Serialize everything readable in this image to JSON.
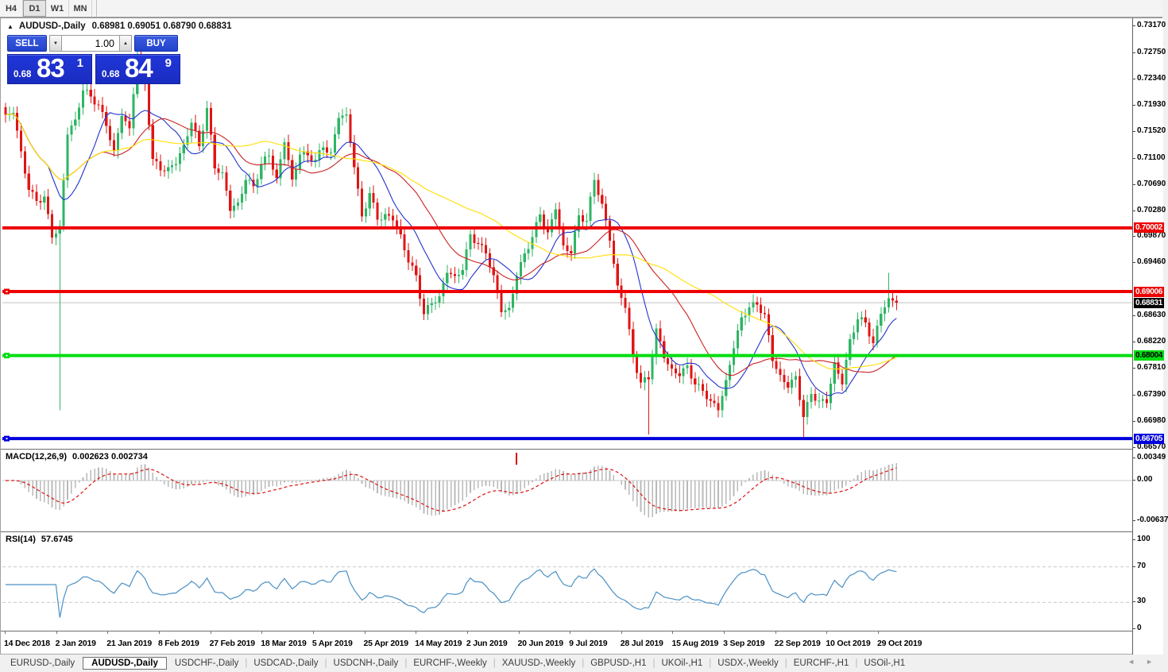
{
  "toolbar": {
    "timeframes": [
      {
        "label": "H4",
        "active": false
      },
      {
        "label": "D1",
        "active": true
      },
      {
        "label": "W1",
        "active": false
      },
      {
        "label": "MN",
        "active": false
      }
    ]
  },
  "chart": {
    "collapse_icon": "▲",
    "symbol_period": "AUDUSD-,Daily",
    "ohlc": "0.68981 0.69051 0.68790 0.68831"
  },
  "trade_panel": {
    "sell_label": "SELL",
    "buy_label": "BUY",
    "volume": "1.00",
    "spinner_down": "▼",
    "spinner_up": "▲",
    "sell_price_main": "0.68",
    "sell_price_big": "83",
    "sell_price_sup": "1",
    "buy_price_main": "0.68",
    "buy_price_big": "84",
    "buy_price_sup": "9"
  },
  "price_axis": {
    "ticks": [
      "0.73170",
      "0.72750",
      "0.72340",
      "0.71930",
      "0.71520",
      "0.71100",
      "0.70690",
      "0.70280",
      "0.69870",
      "0.69460",
      "0.68630",
      "0.68220",
      "0.67810",
      "0.67390",
      "0.66980",
      "0.66570"
    ],
    "badges": [
      {
        "text": "0.70002",
        "bg": "#ee0000",
        "fg": "#ffffff",
        "price": 0.70002
      },
      {
        "text": "0.69006",
        "bg": "#ee0000",
        "fg": "#ffffff",
        "price": 0.69006
      },
      {
        "text": "0.68831",
        "bg": "#000000",
        "fg": "#ffffff",
        "price": 0.68831
      },
      {
        "text": "0.68004",
        "bg": "#00dd11",
        "fg": "#000000",
        "price": 0.68004
      },
      {
        "text": "0.66705",
        "bg": "#0000dd",
        "fg": "#ffffff",
        "price": 0.66705
      }
    ]
  },
  "macd_panel": {
    "label": "MACD(12,26,9)",
    "values": "0.002623 0.002734",
    "ticks": [
      {
        "text": "0.00349",
        "value": 0.00349
      },
      {
        "text": "0.00",
        "value": 0
      },
      {
        "text": "-0.00637",
        "value": -0.00637
      }
    ]
  },
  "rsi_panel": {
    "label": "RSI(14)",
    "value": "57.6745",
    "ticks": [
      {
        "text": "100",
        "value": 100
      },
      {
        "text": "70",
        "value": 70
      },
      {
        "text": "30",
        "value": 30
      },
      {
        "text": "0",
        "value": 0
      }
    ],
    "levels": [
      70,
      30
    ]
  },
  "dates": [
    "14 Dec 2018",
    "2 Jan 2019",
    "21 Jan 2019",
    "8 Feb 2019",
    "27 Feb 2019",
    "18 Mar 2019",
    "5 Apr 2019",
    "25 Apr 2019",
    "14 May 2019",
    "2 Jun 2019",
    "20 Jun 2019",
    "9 Jul 2019",
    "28 Jul 2019",
    "15 Aug 2019",
    "3 Sep 2019",
    "22 Sep 2019",
    "10 Oct 2019",
    "29 Oct 2019"
  ],
  "tabs": [
    {
      "label": "EURUSD-,Daily",
      "active": false
    },
    {
      "label": "AUDUSD-,Daily",
      "active": true
    },
    {
      "label": "USDCHF-,Daily",
      "active": false
    },
    {
      "label": "USDCAD-,Daily",
      "active": false
    },
    {
      "label": "USDCNH-,Daily",
      "active": false
    },
    {
      "label": "EURCHF-,Weekly",
      "active": false
    },
    {
      "label": "XAUUSD-,Weekly",
      "active": false
    },
    {
      "label": "GBPUSD-,H1",
      "active": false
    },
    {
      "label": "UKOil-,H1",
      "active": false
    },
    {
      "label": "USDX-,Weekly",
      "active": false
    },
    {
      "label": "EURCHF-,H1",
      "active": false
    },
    {
      "label": "USOil-,H1",
      "active": false
    }
  ],
  "tab_nav": {
    "left": "◄",
    "right": "►"
  },
  "colors": {
    "up": "#2eb564",
    "down": "#e01515",
    "ma_fast": "#2233cc",
    "ma_mid": "#cc2222",
    "ma_slow": "#ffdf00",
    "hist": "#b9b9b9",
    "signal": "#dd1111",
    "rsi": "#4a90c4",
    "level_dash": "#c9c9c9",
    "current_line": "#c0c0c0"
  },
  "chart_data": {
    "type": "candlestick",
    "symbol": "AUDUSD",
    "period": "Daily",
    "ylim": [
      0.6657,
      0.7317
    ],
    "current_price": 0.68831,
    "hlines": [
      {
        "price": 0.70002,
        "color": "#ee0000",
        "handle": false
      },
      {
        "price": 0.69006,
        "color": "#ee0000",
        "handle": true
      },
      {
        "price": 0.68004,
        "color": "#00dd11",
        "handle": true
      },
      {
        "price": 0.66705,
        "color": "#0000dd",
        "handle": true
      }
    ],
    "ma_periods": [
      12,
      26,
      52
    ],
    "macd_params": [
      12,
      26,
      9
    ],
    "rsi_period": 14,
    "macd_marker_x": 647,
    "closes": [
      0.7177,
      0.718,
      0.712,
      0.706,
      0.7042,
      0.7049,
      0.6985,
      0.7003,
      0.7146,
      0.717,
      0.7215,
      0.7206,
      0.7193,
      0.716,
      0.7121,
      0.7175,
      0.7156,
      0.7272,
      0.7226,
      0.7108,
      0.709,
      0.7095,
      0.71,
      0.713,
      0.7165,
      0.7128,
      0.7188,
      0.7093,
      0.7087,
      0.7027,
      0.704,
      0.7075,
      0.7065,
      0.71,
      0.7113,
      0.7078,
      0.7134,
      0.7076,
      0.7115,
      0.7114,
      0.7107,
      0.7126,
      0.7118,
      0.7172,
      0.7178,
      0.7095,
      0.7018,
      0.7055,
      0.7013,
      0.7022,
      0.7012,
      0.699,
      0.6946,
      0.6926,
      0.6865,
      0.6882,
      0.6893,
      0.693,
      0.6925,
      0.6934,
      0.699,
      0.6975,
      0.696,
      0.6926,
      0.6868,
      0.6875,
      0.6924,
      0.696,
      0.6986,
      0.7021,
      0.6993,
      0.7029,
      0.6973,
      0.696,
      0.702,
      0.7011,
      0.7075,
      0.7038,
      0.698,
      0.691,
      0.6875,
      0.68,
      0.6758,
      0.6763,
      0.6843,
      0.6796,
      0.678,
      0.6768,
      0.6785,
      0.6755,
      0.6745,
      0.673,
      0.6715,
      0.6762,
      0.6812,
      0.686,
      0.6876,
      0.688,
      0.6865,
      0.6792,
      0.677,
      0.675,
      0.6768,
      0.6704,
      0.674,
      0.673,
      0.6726,
      0.679,
      0.6755,
      0.6826,
      0.6857,
      0.6852,
      0.682,
      0.6866,
      0.689,
      0.68831
    ],
    "special": {
      "14": {
        "low": 0.6715
      },
      "166": {
        "low": 0.6677
      },
      "206": {
        "low": 0.667
      },
      "228": {
        "high": 0.693
      }
    }
  }
}
